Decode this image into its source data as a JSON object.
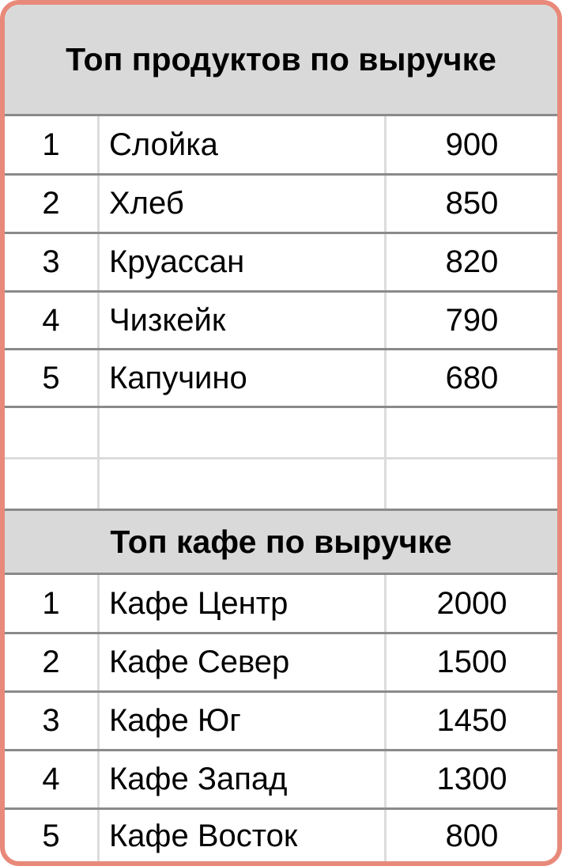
{
  "products": {
    "title": "Топ продуктов по выручке",
    "rows": [
      {
        "rank": "1",
        "name": "Слойка",
        "value": "900"
      },
      {
        "rank": "2",
        "name": "Хлеб",
        "value": "850"
      },
      {
        "rank": "3",
        "name": "Круассан",
        "value": "820"
      },
      {
        "rank": "4",
        "name": "Чизкейк",
        "value": "790"
      },
      {
        "rank": "5",
        "name": "Капучино",
        "value": "680"
      }
    ]
  },
  "cafes": {
    "title": "Топ кафе по выручке",
    "rows": [
      {
        "rank": "1",
        "name": "Кафе Центр",
        "value": "2000"
      },
      {
        "rank": "2",
        "name": "Кафе Север",
        "value": "1500"
      },
      {
        "rank": "3",
        "name": "Кафе Юг",
        "value": "1450"
      },
      {
        "rank": "4",
        "name": "Кафе Запад",
        "value": "1300"
      },
      {
        "rank": "5",
        "name": "Кафе Восток",
        "value": "800"
      }
    ]
  },
  "colors": {
    "border": "#E8897A",
    "header_bg": "#D9D9D9"
  }
}
